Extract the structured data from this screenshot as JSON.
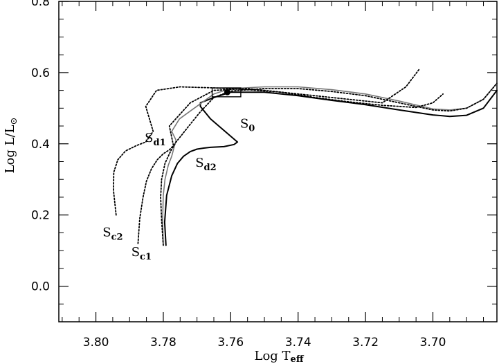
{
  "chart_data": {
    "type": "line",
    "title": "",
    "xlabel": "Log T",
    "xlabel_sub": "eff",
    "ylabel": "Log L/L",
    "ylabel_sym": "⊙",
    "xlim": [
      3.811,
      3.681
    ],
    "ylim": [
      -0.1,
      0.8
    ],
    "x_reversed": true,
    "grid": false,
    "x_ticks": [
      3.8,
      3.78,
      3.76,
      3.74,
      3.72,
      3.7
    ],
    "x_tick_labels": [
      "3.80",
      "3.78",
      "3.76",
      "3.74",
      "3.72",
      "3.70"
    ],
    "y_ticks": [
      0.0,
      0.2,
      0.4,
      0.6,
      0.8
    ],
    "y_tick_labels": [
      "0.0",
      "0.2",
      "0.4",
      "0.6",
      "0.8"
    ],
    "marker": {
      "x": 3.761,
      "y": 0.545,
      "label": ""
    },
    "box": {
      "x1": 3.7655,
      "x2": 3.757,
      "y1": 0.532,
      "y2": 0.557
    },
    "series": [
      {
        "name": "S",
        "sub": "0",
        "style": "solid",
        "label_pos": [
          3.7572,
          0.445
        ],
        "x": [
          3.7792,
          3.7796,
          3.779,
          3.7775,
          3.7758,
          3.774,
          3.772,
          3.77,
          3.768,
          3.766,
          3.762,
          3.759,
          3.758,
          3.766,
          3.769,
          3.769,
          3.765,
          3.76,
          3.75,
          3.74,
          3.73,
          3.72,
          3.71,
          3.7,
          3.695,
          3.69,
          3.685,
          3.681
        ],
        "y": [
          0.115,
          0.18,
          0.255,
          0.31,
          0.345,
          0.365,
          0.378,
          0.385,
          0.388,
          0.39,
          0.392,
          0.398,
          0.405,
          0.47,
          0.505,
          0.515,
          0.53,
          0.545,
          0.545,
          0.535,
          0.522,
          0.51,
          0.495,
          0.481,
          0.477,
          0.48,
          0.5,
          0.55
        ]
      },
      {
        "name": "S",
        "sub": "d2",
        "style": "gray",
        "label_pos": [
          3.7705,
          0.335
        ],
        "x": [
          3.78,
          3.7802,
          3.78,
          3.7795,
          3.7785,
          3.7775,
          3.7768,
          3.7762,
          3.7775,
          3.7752,
          3.765,
          3.76,
          3.75,
          3.74,
          3.73,
          3.72,
          3.71,
          3.7,
          3.695,
          3.69,
          3.685,
          3.681
        ],
        "y": [
          0.115,
          0.185,
          0.255,
          0.3,
          0.34,
          0.365,
          0.39,
          0.41,
          0.435,
          0.47,
          0.54,
          0.555,
          0.56,
          0.56,
          0.552,
          0.54,
          0.52,
          0.498,
          0.495,
          0.5,
          0.525,
          0.57
        ]
      },
      {
        "name": "S",
        "sub": "d1",
        "style": "dotted",
        "label_pos": [
          3.7855,
          0.405
        ],
        "x": [
          3.7875,
          3.787,
          3.786,
          3.785,
          3.7835,
          3.7818,
          3.78,
          3.7782,
          3.777,
          3.7782,
          3.772,
          3.765,
          3.755,
          3.745,
          3.735,
          3.725,
          3.715,
          3.705,
          3.7,
          3.697
        ],
        "y": [
          0.12,
          0.19,
          0.25,
          0.295,
          0.33,
          0.355,
          0.372,
          0.383,
          0.395,
          0.45,
          0.515,
          0.55,
          0.555,
          0.545,
          0.53,
          0.518,
          0.508,
          0.502,
          0.515,
          0.54
        ]
      },
      {
        "name": "S",
        "sub": "c1",
        "style": "dotted",
        "label_pos": [
          3.7895,
          0.085
        ],
        "x": [
          3.78,
          3.7805,
          3.7808,
          3.7805,
          3.7795,
          3.7778,
          3.7762,
          3.7745,
          3.772,
          3.769,
          3.765,
          3.76,
          3.75,
          3.74,
          3.73,
          3.72,
          3.71,
          3.7,
          3.695,
          3.69,
          3.685,
          3.681
        ],
        "y": [
          0.115,
          0.185,
          0.25,
          0.3,
          0.345,
          0.38,
          0.405,
          0.425,
          0.455,
          0.49,
          0.53,
          0.548,
          0.555,
          0.555,
          0.547,
          0.535,
          0.515,
          0.495,
          0.492,
          0.5,
          0.525,
          0.57
        ]
      },
      {
        "name": "S",
        "sub": "c2",
        "style": "dotted",
        "label_pos": [
          3.798,
          0.14
        ],
        "x": [
          3.794,
          3.7948,
          3.7947,
          3.7935,
          3.7912,
          3.788,
          3.7852,
          3.783,
          3.7852,
          3.782,
          3.775,
          3.765,
          3.755,
          3.745,
          3.735,
          3.725,
          3.715,
          3.708,
          3.704
        ],
        "y": [
          0.2,
          0.27,
          0.32,
          0.355,
          0.38,
          0.395,
          0.405,
          0.435,
          0.505,
          0.55,
          0.56,
          0.557,
          0.552,
          0.545,
          0.535,
          0.525,
          0.515,
          0.56,
          0.61
        ]
      }
    ]
  }
}
